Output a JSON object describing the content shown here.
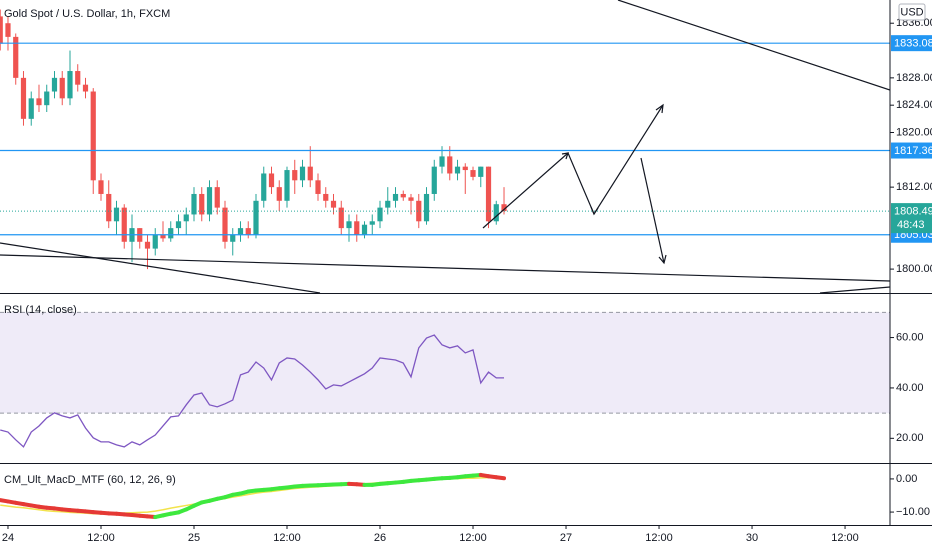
{
  "chart_data": [
    {
      "type": "candlestick",
      "title": "Gold Spot / U.S. Dollar, 1h, FXCM",
      "currency": "USD",
      "x": [
        -1,
        0,
        1,
        2,
        3,
        4,
        5,
        6,
        7,
        8,
        9,
        10,
        11,
        12,
        13,
        14,
        15,
        16,
        17,
        18,
        19,
        20,
        21,
        22,
        23,
        24,
        25,
        26,
        27,
        28,
        29,
        30,
        31,
        32,
        33,
        34,
        35,
        36,
        37,
        38,
        39,
        40,
        41,
        42,
        43,
        44,
        45,
        46,
        47,
        48,
        49,
        50,
        51,
        52,
        53,
        54,
        55,
        56,
        57,
        58,
        59,
        60,
        61,
        62,
        63,
        64
      ],
      "open": [
        1837,
        1836,
        1834,
        1828,
        1822,
        1825,
        1824,
        1826,
        1828,
        1825,
        1829,
        1827,
        1826,
        1813,
        1811,
        1807,
        1809,
        1804,
        1806,
        1804,
        1803,
        1805,
        1804.5,
        1806,
        1807,
        1808,
        1811,
        1808,
        1812,
        1809,
        1804,
        1805,
        1806,
        1805,
        1810,
        1814,
        1812,
        1810,
        1814.5,
        1813,
        1815,
        1813,
        1811,
        1810,
        1809,
        1806,
        1807,
        1805,
        1806.5,
        1807,
        1809,
        1810,
        1811,
        1810.5,
        1810,
        1807,
        1811,
        1815,
        1816.5,
        1814,
        1815,
        1814.5,
        1813.5,
        1815,
        1807,
        1809.5
      ],
      "high": [
        1838,
        1837,
        1834.5,
        1829,
        1826,
        1827,
        1827,
        1829,
        1829,
        1832,
        1830,
        1828,
        1826.5,
        1814,
        1813,
        1810,
        1809.5,
        1808,
        1806,
        1805,
        1806,
        1807,
        1807,
        1808,
        1809,
        1812,
        1812,
        1813,
        1813,
        1810,
        1806,
        1807,
        1807,
        1811,
        1815,
        1815,
        1813,
        1815,
        1816,
        1816,
        1818,
        1814,
        1812,
        1811,
        1810,
        1808,
        1808,
        1807,
        1808,
        1810,
        1812,
        1812,
        1811.5,
        1811,
        1811,
        1812,
        1816,
        1818,
        1818,
        1816,
        1815.5,
        1815,
        1815,
        1815,
        1810,
        1812
      ],
      "low": [
        1832,
        1832,
        1827,
        1821,
        1821,
        1823,
        1823,
        1825,
        1824,
        1824,
        1826,
        1825,
        1811,
        1810,
        1806,
        1805,
        1803,
        1801,
        1803,
        1800,
        1802,
        1804,
        1804,
        1805,
        1805,
        1807,
        1807,
        1807,
        1808,
        1803,
        1802,
        1804,
        1804.5,
        1804.5,
        1809,
        1811,
        1808.5,
        1809,
        1811,
        1812,
        1812,
        1810,
        1809,
        1808,
        1805,
        1804,
        1804,
        1804.5,
        1805,
        1806,
        1808,
        1809,
        1810,
        1808,
        1806,
        1806.5,
        1810,
        1814,
        1813,
        1813,
        1811,
        1813,
        1812,
        1806,
        1806.5,
        1808
      ],
      "close": [
        1833,
        1834,
        1828,
        1822,
        1825,
        1824,
        1826,
        1828,
        1825,
        1829,
        1827,
        1826,
        1813,
        1811,
        1807,
        1809,
        1804,
        1806,
        1804,
        1803,
        1805,
        1804.5,
        1806,
        1807,
        1808,
        1811,
        1808,
        1812,
        1809,
        1804,
        1805,
        1806,
        1805,
        1810,
        1814,
        1812,
        1810,
        1814.5,
        1813,
        1815,
        1813,
        1811,
        1810,
        1809,
        1806,
        1807,
        1805,
        1806.5,
        1807,
        1809,
        1810,
        1811,
        1810.5,
        1810,
        1807,
        1811,
        1815,
        1816.5,
        1814,
        1815,
        1814.5,
        1813.5,
        1815,
        1807,
        1809.5,
        1808.49
      ],
      "up_color": "#26a69a",
      "down_color": "#ef5350",
      "xlim": [
        -1.03,
        113.8
      ],
      "xticks": [
        {
          "value": 0,
          "label": "24"
        },
        {
          "value": 12,
          "label": "12:00"
        },
        {
          "value": 24,
          "label": "25"
        },
        {
          "value": 36,
          "label": "12:00"
        },
        {
          "value": 48,
          "label": "26"
        },
        {
          "value": 60,
          "label": "12:00"
        },
        {
          "value": 72,
          "label": "27"
        },
        {
          "value": 84,
          "label": "12:00"
        },
        {
          "value": 96,
          "label": "30"
        },
        {
          "value": 108,
          "label": "12:00"
        }
      ],
      "ylim": [
        1796.5,
        1839.4
      ],
      "yticks": [
        {
          "value": 1800,
          "label": "1800.00"
        },
        {
          "value": 1812,
          "label": "1812.00"
        },
        {
          "value": 1820,
          "label": "1820.00"
        },
        {
          "value": 1824,
          "label": "1824.00"
        },
        {
          "value": 1828,
          "label": "1828.00"
        },
        {
          "value": 1836,
          "label": "1836.00"
        }
      ],
      "price_lines": [
        1833.08,
        1817.36,
        1805.03
      ],
      "price_line_color": "#2196f3",
      "last_price": 1808.49,
      "countdown": "48:43"
    },
    {
      "type": "line",
      "title": "RSI (14, close)",
      "color": "#7e57c2",
      "values": [
        23.3,
        22.5,
        19.4,
        16.6,
        22.5,
        24.9,
        28.1,
        30.1,
        28.9,
        28.1,
        29.3,
        24.1,
        20.2,
        18.6,
        18.6,
        17.4,
        16.6,
        18.6,
        17.4,
        19.4,
        21.3,
        24.9,
        28.5,
        28.9,
        33.3,
        37.2,
        38.0,
        33.3,
        32.5,
        33.7,
        35.2,
        45.2,
        46.3,
        50.3,
        47.9,
        43.2,
        49.9,
        51.9,
        51.5,
        49.1,
        46.3,
        43.2,
        39.6,
        41.2,
        40.8,
        42.4,
        44.0,
        45.6,
        47.9,
        51.9,
        51.5,
        51.1,
        49.9,
        44.4,
        55.9,
        59.8,
        61.0,
        57.1,
        55.9,
        56.7,
        53.9,
        55.1,
        42.0,
        46.3,
        44.0,
        44.0
      ],
      "bands": [
        30,
        70
      ],
      "band_color": "#7e57c2",
      "ylim": [
        10.6,
        76.1
      ],
      "yticks": [
        {
          "value": 20,
          "label": "20.00"
        },
        {
          "value": 40,
          "label": "40.00"
        },
        {
          "value": 60,
          "label": "60.00"
        }
      ]
    },
    {
      "type": "macd",
      "title": "CM_Ult_MacD_MTF (60, 12, 26, 9)",
      "series": [
        {
          "up_color": "#3ee83e",
          "down_color": "#e53935",
          "values": [
            -6.4,
            -6.8,
            -7.2,
            -7.6,
            -8.0,
            -8.4,
            -8.7,
            -8.9,
            -9.2,
            -9.4,
            -9.6,
            -9.8,
            -10.0,
            -10.2,
            -10.4,
            -10.5,
            -10.7,
            -10.9,
            -11.1,
            -11.3,
            -11.5,
            -11.0,
            -10.5,
            -10.1,
            -9.2,
            -8.1,
            -7.1,
            -6.6,
            -6.0,
            -5.5,
            -4.8,
            -4.4,
            -3.8,
            -3.5,
            -3.3,
            -3.1,
            -2.8,
            -2.6,
            -2.3,
            -2.1,
            -2.0,
            -1.9,
            -1.8,
            -1.7,
            -1.6,
            -1.5,
            -1.6,
            -1.8,
            -1.8,
            -1.5,
            -1.3,
            -1.1,
            -0.9,
            -0.6,
            -0.4,
            -0.2,
            0.0,
            0.2,
            0.3,
            0.5,
            0.8,
            1.0,
            1.2,
            0.8,
            0.5,
            0.2
          ]
        },
        {
          "color": "#f2e34b",
          "values": [
            -7.9,
            -8.2,
            -8.5,
            -8.7,
            -9.0,
            -9.3,
            -9.6,
            -9.8,
            -9.9,
            -10.1,
            -10.2,
            -10.3,
            -10.5,
            -10.6,
            -10.5,
            -10.4,
            -10.3,
            -10.2,
            -10.1,
            -10.0,
            -9.7,
            -9.3,
            -8.8,
            -8.4,
            -8.0,
            -7.6,
            -7.2,
            -6.8,
            -6.3,
            -5.9,
            -5.5,
            -5.1,
            -4.7,
            -4.3,
            -4.0,
            -3.8,
            -3.5,
            -3.2,
            -2.9,
            -2.7,
            -2.5,
            -2.4,
            -2.2,
            -2.1,
            -1.9,
            -1.8,
            -1.6,
            -1.5,
            -1.3,
            -1.1,
            -0.9,
            -0.8,
            -0.8,
            -0.6,
            -0.5,
            -0.3,
            -0.2,
            -0.1,
            0.0,
            0.1,
            0.2,
            0.2,
            0.3,
            0.4,
            0.5,
            0.5
          ]
        }
      ],
      "ylim": [
        -13.9,
        4.5
      ],
      "yticks": [
        {
          "value": -10,
          "label": "−10.00"
        },
        {
          "value": 0,
          "label": "0.00"
        }
      ]
    }
  ]
}
